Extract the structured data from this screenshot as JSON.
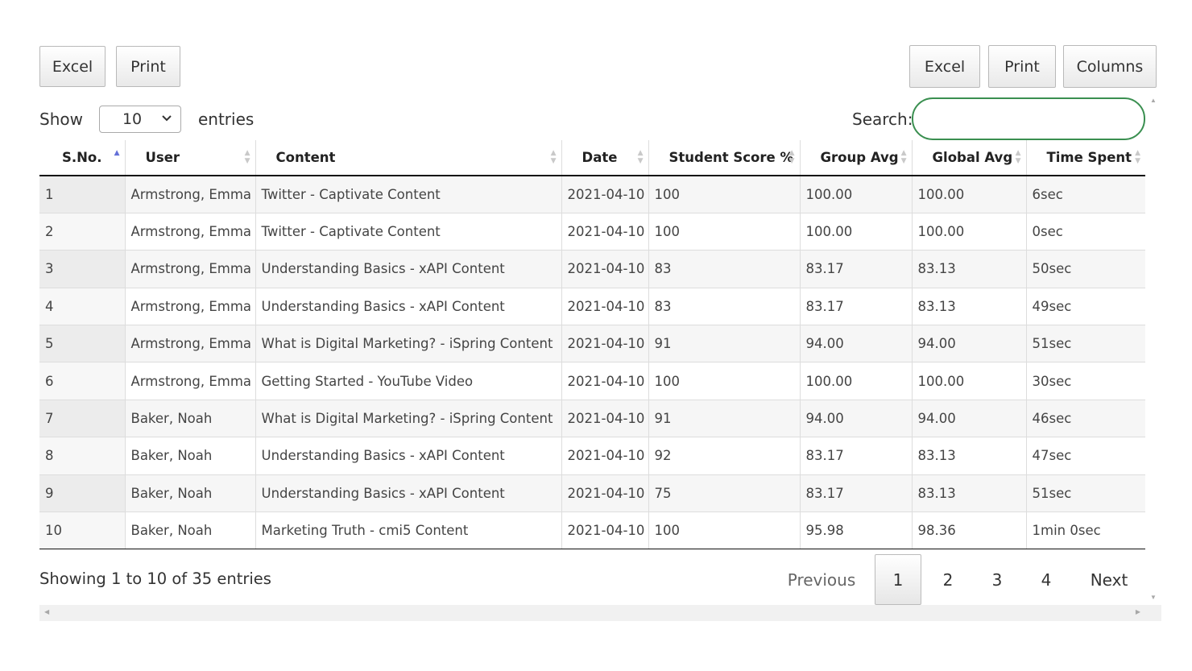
{
  "toolbar_left": {
    "excel": "Excel",
    "print": "Print"
  },
  "toolbar_right": {
    "excel": "Excel",
    "print": "Print",
    "columns": "Columns"
  },
  "length": {
    "show": "Show",
    "value": "10",
    "entries": "entries"
  },
  "search": {
    "label": "Search:",
    "value": ""
  },
  "table": {
    "headers": [
      "S.No.",
      "User",
      "Content",
      "Date",
      "Student Score %",
      "Group Avg",
      "Global Avg",
      "Time Spent"
    ],
    "sorted_column": "S.No.",
    "sort_direction": "ascending",
    "rows": [
      {
        "sno": "1",
        "user": "Armstrong, Emma",
        "content": "Twitter - Captivate Content",
        "date": "2021-04-10",
        "score": "100",
        "score_color": "green",
        "group_avg": "100.00",
        "global_avg": "100.00",
        "time": "6sec"
      },
      {
        "sno": "2",
        "user": "Armstrong, Emma",
        "content": "Twitter - Captivate Content",
        "date": "2021-04-10",
        "score": "100",
        "score_color": "green",
        "group_avg": "100.00",
        "global_avg": "100.00",
        "time": "0sec"
      },
      {
        "sno": "3",
        "user": "Armstrong, Emma",
        "content": "Understanding Basics - xAPI Content",
        "date": "2021-04-10",
        "score": "83",
        "score_color": "red",
        "group_avg": "83.17",
        "global_avg": "83.13",
        "time": "50sec"
      },
      {
        "sno": "4",
        "user": "Armstrong, Emma",
        "content": "Understanding Basics - xAPI Content",
        "date": "2021-04-10",
        "score": "83",
        "score_color": "red",
        "group_avg": "83.17",
        "global_avg": "83.13",
        "time": "49sec"
      },
      {
        "sno": "5",
        "user": "Armstrong, Emma",
        "content": "What is Digital Marketing? - iSpring Content",
        "date": "2021-04-10",
        "score": "91",
        "score_color": "red",
        "group_avg": "94.00",
        "global_avg": "94.00",
        "time": "51sec"
      },
      {
        "sno": "6",
        "user": "Armstrong, Emma",
        "content": "Getting Started - YouTube Video",
        "date": "2021-04-10",
        "score": "100",
        "score_color": "green",
        "group_avg": "100.00",
        "global_avg": "100.00",
        "time": "30sec"
      },
      {
        "sno": "7",
        "user": "Baker, Noah",
        "content": "What is Digital Marketing? - iSpring Content",
        "date": "2021-04-10",
        "score": "91",
        "score_color": "red",
        "group_avg": "94.00",
        "global_avg": "94.00",
        "time": "46sec"
      },
      {
        "sno": "8",
        "user": "Baker, Noah",
        "content": "Understanding Basics - xAPI Content",
        "date": "2021-04-10",
        "score": "92",
        "score_color": "green",
        "group_avg": "83.17",
        "global_avg": "83.13",
        "time": "47sec"
      },
      {
        "sno": "9",
        "user": "Baker, Noah",
        "content": "Understanding Basics - xAPI Content",
        "date": "2021-04-10",
        "score": "75",
        "score_color": "red",
        "group_avg": "83.17",
        "global_avg": "83.13",
        "time": "51sec"
      },
      {
        "sno": "10",
        "user": "Baker, Noah",
        "content": "Marketing Truth - cmi5 Content",
        "date": "2021-04-10",
        "score": "100",
        "score_color": "green",
        "group_avg": "95.98",
        "global_avg": "98.36",
        "time": "1min 0sec"
      }
    ]
  },
  "info": "Showing 1 to 10 of 35 entries",
  "pagination": {
    "previous": "Previous",
    "pages": [
      "1",
      "2",
      "3",
      "4"
    ],
    "current": "1",
    "next": "Next"
  },
  "colors": {
    "score_green": "#2e8b2e",
    "score_red": "#e03030",
    "search_border": "#3a8f50",
    "sort_active": "#6470d8"
  }
}
